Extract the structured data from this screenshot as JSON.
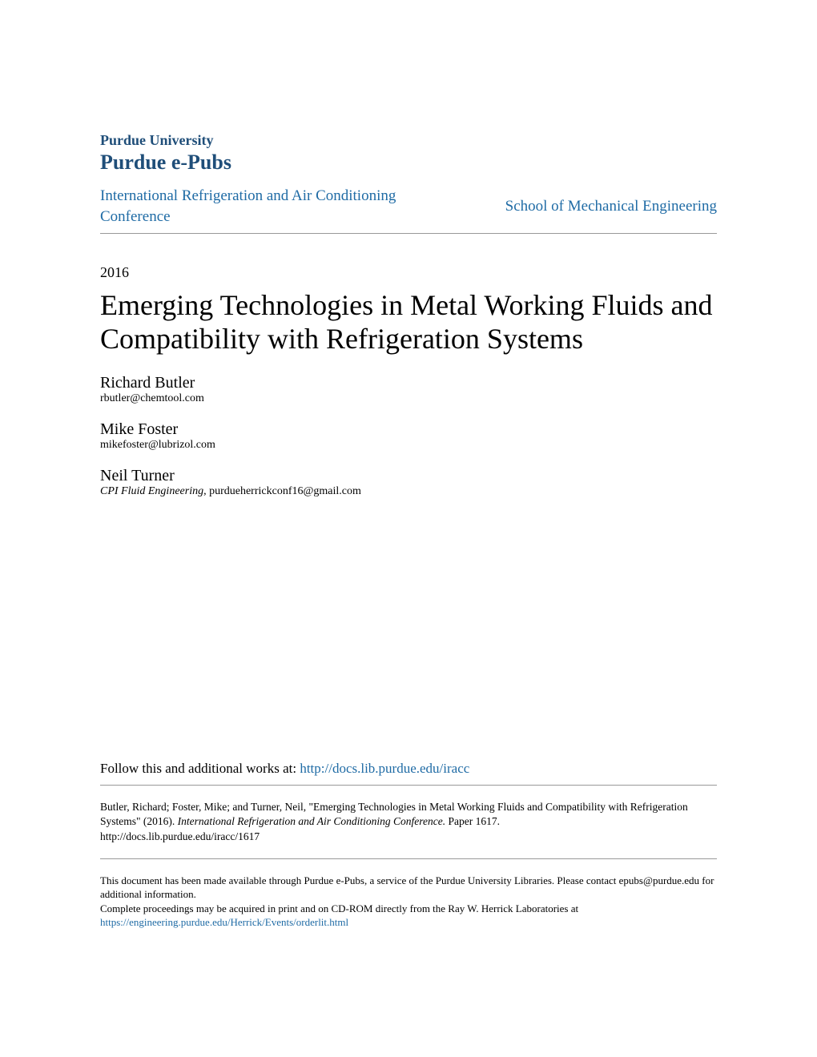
{
  "header": {
    "university": "Purdue University",
    "repository": "Purdue e-Pubs",
    "left_link": "International Refrigeration and Air Conditioning Conference",
    "right_link": "School of Mechanical Engineering"
  },
  "paper": {
    "year": "2016",
    "title": "Emerging Technologies in Metal Working Fluids and Compatibility with Refrigeration Systems"
  },
  "authors": [
    {
      "name": "Richard Butler",
      "email": "rbutler@chemtool.com",
      "affiliation": ""
    },
    {
      "name": "Mike Foster",
      "email": "mikefoster@lubrizol.com",
      "affiliation": ""
    },
    {
      "name": "Neil Turner",
      "email": "purdueherrickconf16@gmail.com",
      "affiliation": "CPI Fluid Engineering"
    }
  ],
  "follow": {
    "text": "Follow this and additional works at: ",
    "url": "http://docs.lib.purdue.edu/iracc"
  },
  "citation": {
    "authors_text": "Butler, Richard; Foster, Mike; and Turner, Neil, \"Emerging Technologies in Metal Working Fluids and Compatibility with Refrigeration Systems\" (2016). ",
    "journal": "International Refrigeration and Air Conditioning Conference. ",
    "paper_ref": "Paper 1617.",
    "url": "http://docs.lib.purdue.edu/iracc/1617"
  },
  "footer": {
    "line1": "This document has been made available through Purdue e-Pubs, a service of the Purdue University Libraries. Please contact epubs@purdue.edu for additional information.",
    "line2_prefix": "Complete proceedings may be acquired in print and on CD-ROM directly from the Ray W. Herrick Laboratories at ",
    "line2_link": "https://engineering.purdue.edu/Herrick/Events/orderlit.html"
  },
  "colors": {
    "heading": "#1f4e79",
    "link": "#1f6ba5",
    "text": "#000000",
    "rule": "#999999",
    "background": "#ffffff"
  }
}
